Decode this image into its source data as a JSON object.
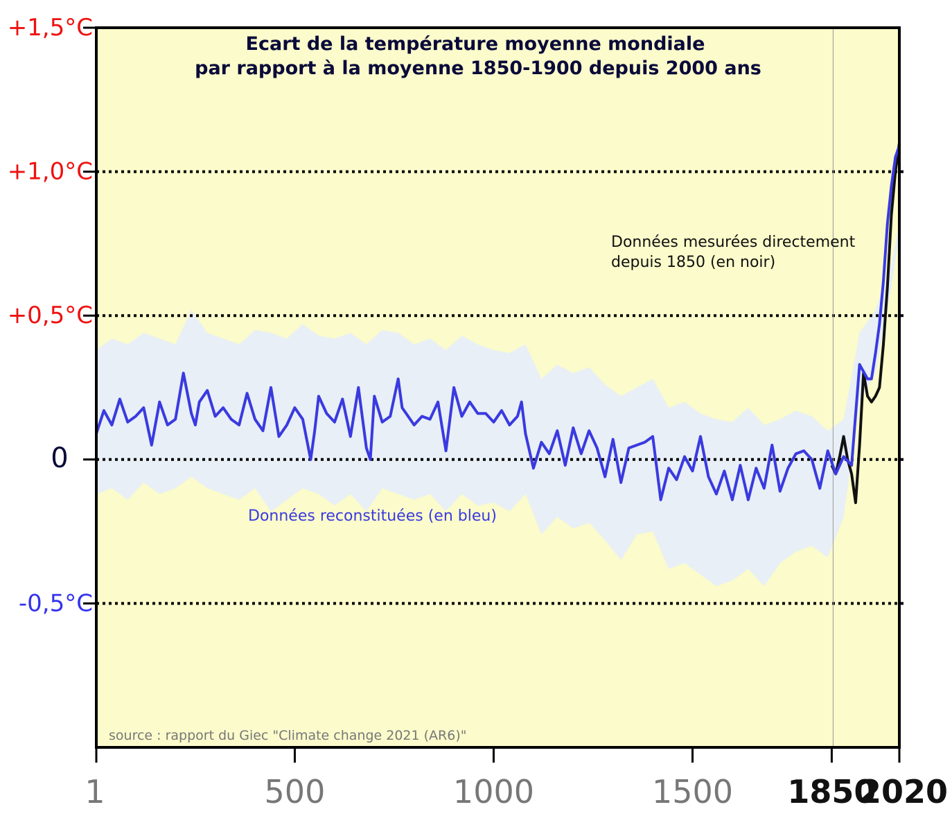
{
  "chart_data": {
    "type": "line",
    "title_lines": [
      "Ecart de la température moyenne mondiale",
      "par rapport à la moyenne 1850-1900 depuis 2000 ans"
    ],
    "source": "source : rapport du Giec \"Climate change 2021 (AR6)\"",
    "annotations": {
      "measured_line1": "Données mesurées directement",
      "measured_line2": "depuis 1850 (en noir)",
      "reconstructed": "Données reconstituées (en bleu)"
    },
    "xlim": [
      1,
      2020
    ],
    "ylim": [
      -1.0,
      1.5
    ],
    "x_ticks": [
      {
        "value": 1,
        "label": "1",
        "bold": false
      },
      {
        "value": 500,
        "label": "500",
        "bold": false
      },
      {
        "value": 1000,
        "label": "1000",
        "bold": false
      },
      {
        "value": 1500,
        "label": "1500",
        "bold": false
      },
      {
        "value": 1850,
        "label": "1850",
        "bold": true
      },
      {
        "value": 2020,
        "label": "2020",
        "bold": true
      }
    ],
    "y_ticks": [
      {
        "value": 1.5,
        "label": "+1,5°C",
        "color": "#ee1111",
        "dotted": false
      },
      {
        "value": 1.0,
        "label": "+1,0°C",
        "color": "#ee1111",
        "dotted": true
      },
      {
        "value": 0.5,
        "label": "+0,5°C",
        "color": "#ee1111",
        "dotted": true
      },
      {
        "value": 0.0,
        "label": "0",
        "color": "#0a0a3a",
        "dotted": true
      },
      {
        "value": -0.5,
        "label": "-0,5°C",
        "color": "#3333ee",
        "dotted": true
      }
    ],
    "colors": {
      "plot_background": "#fbfbcb",
      "uncertainty_band": "#e8eff6",
      "reconstructed": "#3a3ae0",
      "measured": "#111111",
      "title": "#0a0a3a"
    },
    "series": [
      {
        "name": "Données reconstituées (en bleu)",
        "x": [
          1,
          20,
          40,
          60,
          80,
          100,
          120,
          140,
          160,
          180,
          200,
          220,
          240,
          250,
          260,
          280,
          300,
          320,
          340,
          360,
          380,
          400,
          420,
          440,
          460,
          480,
          500,
          520,
          540,
          550,
          560,
          580,
          600,
          620,
          640,
          660,
          680,
          690,
          700,
          720,
          740,
          760,
          770,
          780,
          800,
          820,
          840,
          860,
          880,
          900,
          920,
          940,
          960,
          980,
          1000,
          1020,
          1040,
          1060,
          1070,
          1080,
          1100,
          1120,
          1140,
          1160,
          1180,
          1200,
          1220,
          1240,
          1260,
          1280,
          1300,
          1320,
          1340,
          1360,
          1380,
          1400,
          1420,
          1440,
          1460,
          1480,
          1500,
          1520,
          1540,
          1560,
          1580,
          1600,
          1620,
          1640,
          1660,
          1680,
          1700,
          1720,
          1740,
          1760,
          1780,
          1800,
          1820,
          1840,
          1860,
          1880,
          1900,
          1920,
          1940,
          1950,
          1960,
          1970,
          1980,
          1990,
          2000,
          2010,
          2020
        ],
        "y": [
          0.09,
          0.17,
          0.12,
          0.21,
          0.13,
          0.15,
          0.18,
          0.05,
          0.2,
          0.12,
          0.14,
          0.3,
          0.16,
          0.12,
          0.2,
          0.24,
          0.15,
          0.18,
          0.14,
          0.12,
          0.23,
          0.14,
          0.1,
          0.25,
          0.08,
          0.12,
          0.18,
          0.14,
          0.0,
          0.1,
          0.22,
          0.16,
          0.13,
          0.21,
          0.08,
          0.25,
          0.04,
          0.0,
          0.22,
          0.13,
          0.15,
          0.28,
          0.18,
          0.16,
          0.12,
          0.15,
          0.14,
          0.2,
          0.03,
          0.25,
          0.15,
          0.2,
          0.16,
          0.16,
          0.13,
          0.17,
          0.12,
          0.15,
          0.2,
          0.09,
          -0.03,
          0.06,
          0.02,
          0.1,
          -0.02,
          0.11,
          0.02,
          0.1,
          0.04,
          -0.06,
          0.07,
          -0.08,
          0.04,
          0.05,
          0.06,
          0.08,
          -0.14,
          -0.03,
          -0.07,
          0.01,
          -0.04,
          0.08,
          -0.06,
          -0.12,
          -0.04,
          -0.14,
          -0.02,
          -0.14,
          -0.03,
          -0.1,
          0.05,
          -0.11,
          -0.03,
          0.02,
          0.03,
          0.0,
          -0.1,
          0.03,
          -0.05,
          0.01,
          -0.02,
          0.33,
          0.28,
          0.28,
          0.37,
          0.47,
          0.62,
          0.82,
          0.95,
          1.05,
          1.09
        ]
      },
      {
        "name": "Données mesurées directement depuis 1850 (en noir)",
        "x": [
          1850,
          1860,
          1870,
          1880,
          1890,
          1900,
          1910,
          1920,
          1930,
          1940,
          1950,
          1960,
          1970,
          1980,
          1990,
          2000,
          2010,
          2020
        ],
        "y": [
          -0.02,
          -0.05,
          0.01,
          0.08,
          0.0,
          -0.05,
          -0.15,
          0.05,
          0.3,
          0.22,
          0.2,
          0.22,
          0.25,
          0.4,
          0.6,
          0.85,
          1.0,
          1.1
        ]
      }
    ],
    "band": {
      "x": [
        1,
        40,
        80,
        120,
        160,
        200,
        240,
        280,
        320,
        360,
        400,
        440,
        480,
        520,
        560,
        600,
        640,
        680,
        720,
        760,
        800,
        840,
        880,
        920,
        960,
        1000,
        1040,
        1080,
        1120,
        1160,
        1200,
        1240,
        1280,
        1320,
        1360,
        1400,
        1440,
        1480,
        1520,
        1560,
        1600,
        1640,
        1680,
        1720,
        1760,
        1800,
        1840,
        1880,
        1920,
        1960,
        2000,
        2020
      ],
      "upper": [
        0.38,
        0.42,
        0.4,
        0.44,
        0.42,
        0.4,
        0.52,
        0.44,
        0.42,
        0.4,
        0.45,
        0.44,
        0.42,
        0.47,
        0.43,
        0.42,
        0.44,
        0.4,
        0.45,
        0.44,
        0.4,
        0.42,
        0.38,
        0.43,
        0.4,
        0.38,
        0.37,
        0.4,
        0.28,
        0.33,
        0.3,
        0.32,
        0.26,
        0.22,
        0.25,
        0.28,
        0.18,
        0.2,
        0.16,
        0.14,
        0.13,
        0.18,
        0.12,
        0.14,
        0.17,
        0.15,
        0.1,
        0.14,
        0.44,
        0.52,
        0.68,
        0.82
      ],
      "lower": [
        -0.12,
        -0.1,
        -0.14,
        -0.08,
        -0.12,
        -0.1,
        -0.06,
        -0.1,
        -0.12,
        -0.14,
        -0.1,
        -0.18,
        -0.14,
        -0.1,
        -0.12,
        -0.16,
        -0.12,
        -0.18,
        -0.1,
        -0.12,
        -0.14,
        -0.12,
        -0.18,
        -0.12,
        -0.16,
        -0.15,
        -0.18,
        -0.12,
        -0.26,
        -0.2,
        -0.24,
        -0.22,
        -0.28,
        -0.35,
        -0.26,
        -0.25,
        -0.38,
        -0.36,
        -0.4,
        -0.44,
        -0.42,
        -0.38,
        -0.44,
        -0.36,
        -0.32,
        -0.3,
        -0.34,
        -0.2,
        0.2,
        0.3,
        0.6,
        0.78
      ]
    }
  }
}
